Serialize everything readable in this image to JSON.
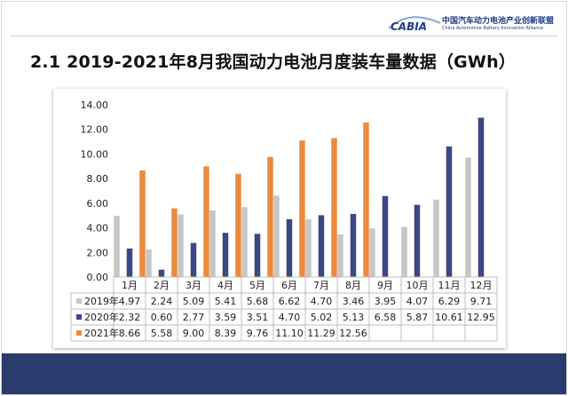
{
  "header": {
    "org_name_cn": "中国汽车动力电池产业创新联盟",
    "org_name_en": "China Automotive Battery Innovation Alliance",
    "logo_text": "CABIA"
  },
  "title": "2.1 2019-2021年8月我国动力电池月度装车量数据（GWh）",
  "colors": {
    "series_2019": "#c6c6c6",
    "series_2020": "#3b4786",
    "series_2021": "#ee8a3a",
    "footer": "#2c3b6e",
    "logo_blue": "#1e3a8a"
  },
  "chart_data": {
    "type": "bar",
    "categories": [
      "1月",
      "2月",
      "3月",
      "4月",
      "5月",
      "6月",
      "7月",
      "8月",
      "9月",
      "10月",
      "11月",
      "12月"
    ],
    "series": [
      {
        "name": "2019年",
        "values": [
          4.97,
          2.24,
          5.09,
          5.41,
          5.68,
          6.62,
          4.7,
          3.46,
          3.95,
          4.07,
          6.29,
          9.71
        ],
        "labels": [
          "4.97",
          "2.24",
          "5.09",
          "5.41",
          "5.68",
          "6.62",
          "4.70",
          "3.46",
          "3.95",
          "4.07",
          "6.29",
          "9.71"
        ]
      },
      {
        "name": "2020年",
        "values": [
          2.32,
          0.6,
          2.77,
          3.59,
          3.51,
          4.7,
          5.02,
          5.13,
          6.58,
          5.87,
          10.61,
          12.95
        ],
        "labels": [
          "2.32",
          "0.60",
          "2.77",
          "3.59",
          "3.51",
          "4.70",
          "5.02",
          "5.13",
          "6.58",
          "5.87",
          "10.61",
          "12.95"
        ]
      },
      {
        "name": "2021年",
        "values": [
          8.66,
          5.58,
          9.0,
          8.39,
          9.76,
          11.1,
          11.29,
          12.56,
          null,
          null,
          null,
          null
        ],
        "labels": [
          "8.66",
          "5.58",
          "9.00",
          "8.39",
          "9.76",
          "11.10",
          "11.29",
          "12.56",
          "",
          "",
          "",
          ""
        ]
      }
    ],
    "y_ticks": [
      "0.00",
      "2.00",
      "4.00",
      "6.00",
      "8.00",
      "10.00",
      "12.00",
      "14.00"
    ],
    "ylim": [
      0,
      14
    ],
    "grid": false,
    "legend": "data-table"
  }
}
